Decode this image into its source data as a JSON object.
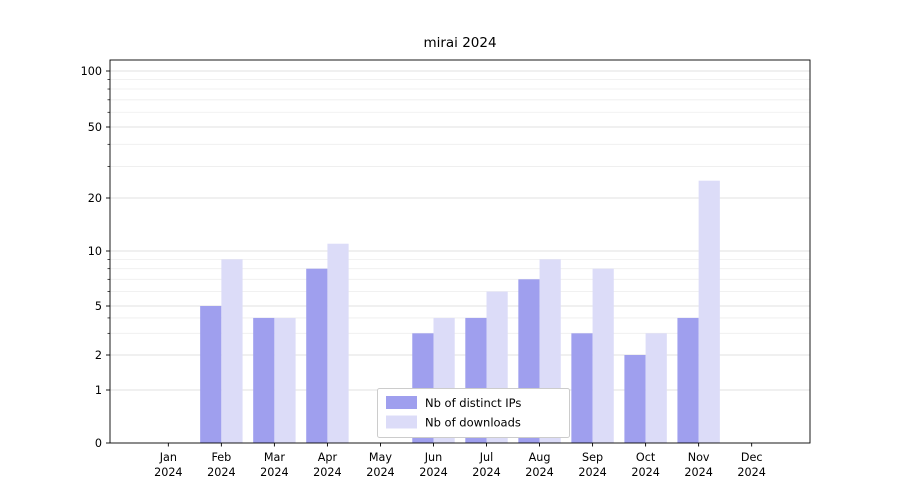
{
  "chart_data": {
    "type": "bar",
    "title": "mirai 2024",
    "categories": [
      "Jan",
      "Feb",
      "Mar",
      "Apr",
      "May",
      "Jun",
      "Jul",
      "Aug",
      "Sep",
      "Oct",
      "Nov",
      "Dec"
    ],
    "year_label": "2024",
    "series": [
      {
        "name": "Nb of distinct IPs",
        "color": "#9f9fee",
        "values": [
          0,
          5,
          4,
          8,
          0,
          3,
          4,
          7,
          3,
          2,
          4,
          0
        ]
      },
      {
        "name": "Nb of downloads",
        "color": "#dcdcf8",
        "values": [
          0,
          9,
          4,
          11,
          0,
          4,
          6,
          9,
          8,
          3,
          25,
          0
        ]
      }
    ],
    "yscale": "symlog",
    "yticks": [
      0,
      1,
      2,
      5,
      10,
      20,
      50,
      100
    ],
    "minor_yticks": [
      3,
      4,
      6,
      7,
      8,
      9,
      30,
      40,
      60,
      70,
      80,
      90
    ],
    "ylim": [
      0,
      120
    ],
    "grid": true,
    "legend_position": "lower center"
  },
  "colors": {
    "axis": "#000000",
    "grid_major": "#d9d9d9",
    "grid_minor": "#ededed",
    "background": "#ffffff",
    "legend_border": "#cccccc",
    "legend_background": "#ffffff"
  }
}
